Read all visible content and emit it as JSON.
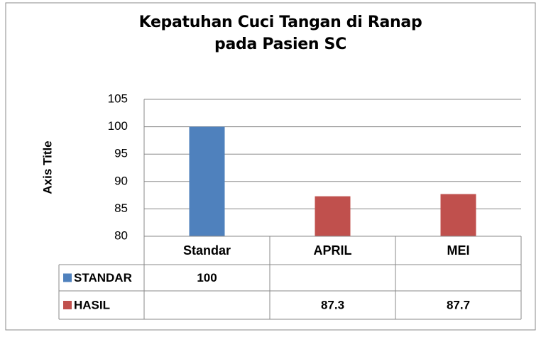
{
  "chart_data": {
    "type": "bar",
    "title": "Kepatuhan Cuci Tangan di Ranap pada Pasien SC",
    "y_axis_label": "Axis Title",
    "categories": [
      "Standar",
      "APRIL",
      "MEI"
    ],
    "series": [
      {
        "name": "STANDAR",
        "color": "#4f81bd",
        "values": [
          100,
          null,
          null
        ]
      },
      {
        "name": "HASIL",
        "color": "#c0504d",
        "values": [
          null,
          87.3,
          87.7
        ]
      }
    ],
    "ylim": [
      80,
      105
    ],
    "yticks": [
      80,
      85,
      90,
      95,
      100,
      105
    ],
    "grid": true,
    "data_table": true
  }
}
